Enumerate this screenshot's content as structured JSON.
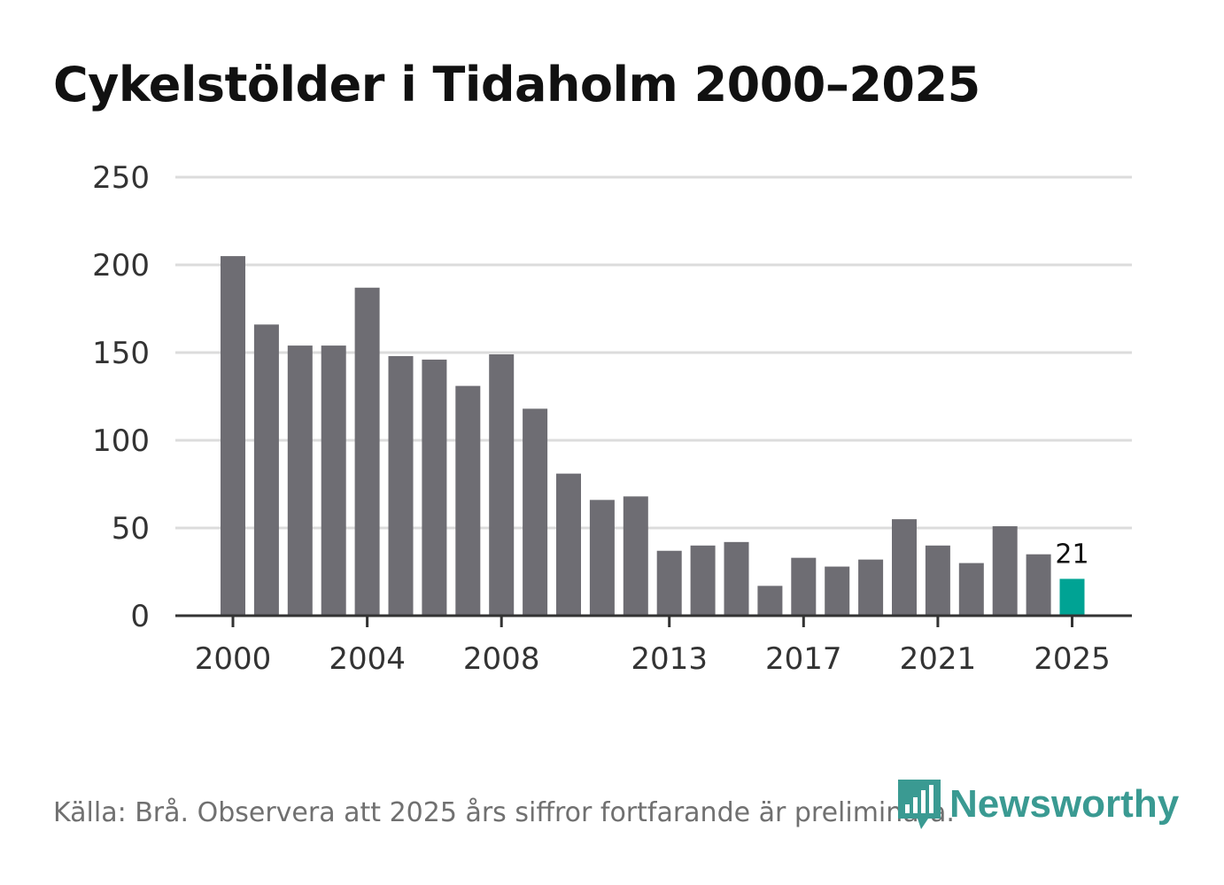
{
  "chart_data": {
    "type": "bar",
    "title": "Cykelstölder i Tidaholm 2000–2025",
    "xlabel": "",
    "ylabel": "",
    "categories": [
      "2000",
      "2001",
      "2002",
      "2003",
      "2004",
      "2005",
      "2006",
      "2007",
      "2008",
      "2009",
      "2010",
      "2011",
      "2012",
      "2013",
      "2014",
      "2015",
      "2016",
      "2017",
      "2018",
      "2019",
      "2020",
      "2021",
      "2022",
      "2023",
      "2024",
      "2025"
    ],
    "values": [
      205,
      166,
      154,
      154,
      187,
      148,
      146,
      131,
      149,
      118,
      81,
      66,
      68,
      37,
      40,
      42,
      17,
      33,
      28,
      32,
      55,
      40,
      30,
      51,
      35,
      21
    ],
    "x_tick_labels": [
      "2000",
      "2004",
      "2008",
      "2013",
      "2017",
      "2021",
      "2025"
    ],
    "y_ticks": [
      0,
      50,
      100,
      150,
      200,
      250
    ],
    "ylim": [
      0,
      250
    ],
    "grid": true,
    "highlight": {
      "category": "2025",
      "label": "21"
    },
    "colors": {
      "bar": "#6e6d73",
      "highlight": "#00a394",
      "grid": "#dcdcdc",
      "axis": "#333333",
      "tick_text": "#333333"
    }
  },
  "footer": {
    "source": "Källa: Brå. Observera att 2025 års siffror fortfarande är preliminära."
  },
  "brand": {
    "name": "Newsworthy",
    "color": "#3a9a92",
    "icon": "newsworthy-logo-icon"
  }
}
